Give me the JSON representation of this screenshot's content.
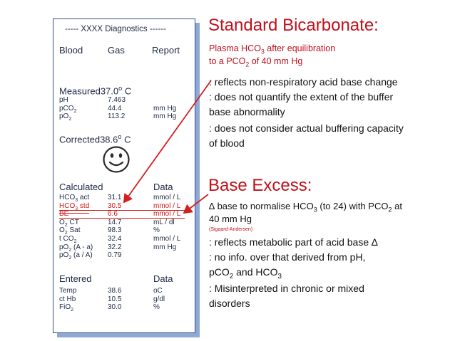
{
  "printout": {
    "title": "----- XXXX Diagnostics ------",
    "header": {
      "c1": "Blood",
      "c2": "Gas",
      "c3": "Report"
    },
    "measured": {
      "label": "Measured",
      "temp": "37.0",
      "unit": "C",
      "deg": "o"
    },
    "measured_rows": [
      {
        "name": "pH",
        "value": "7.463",
        "unit": ""
      },
      {
        "name": "pCO",
        "sub": "2",
        "value": "44.4",
        "unit": "mm Hg"
      },
      {
        "name": "pO",
        "sub": "2",
        "value": "113.2",
        "unit": "mm Hg"
      }
    ],
    "corrected": {
      "label": "Corrected",
      "temp": "38.6",
      "unit": "C",
      "deg": "o"
    },
    "calculated": {
      "label": "Calculated",
      "right": "Data"
    },
    "calculated_rows": [
      {
        "name": "HCO",
        "sub": "3",
        "suffix": " act",
        "value": "31.1",
        "unit": "mmol / L",
        "red": false
      },
      {
        "name": "HCO",
        "sub": "3",
        "suffix": " std",
        "value": "30.5",
        "unit": "mmol / L",
        "red": true
      },
      {
        "name": "BE",
        "sub": "",
        "suffix": "",
        "value": "6.6",
        "unit": "mmol / L",
        "red": true
      },
      {
        "name": "O",
        "sub": "2",
        "suffix": " CT",
        "value": "14.7",
        "unit": "mL / dl",
        "red": false
      },
      {
        "name": "O",
        "sub": "2",
        "suffix": " Sat",
        "value": "98.3",
        "unit": "%",
        "red": false
      },
      {
        "name": "t CO",
        "sub": "2",
        "suffix": "",
        "value": "32.4",
        "unit": "mmol / L",
        "red": false
      },
      {
        "name": "pO",
        "sub": "2",
        "suffix": " (A - a)",
        "value": "32.2",
        "unit": "mm Hg",
        "red": false
      },
      {
        "name": "pO",
        "sub": "2",
        "suffix": " (a / A)",
        "value": "0.79",
        "unit": "",
        "red": false
      }
    ],
    "entered": {
      "label": "Entered",
      "right": "Data"
    },
    "entered_rows": [
      {
        "name": "Temp",
        "sub": "",
        "value": "38.6",
        "unit": "oC"
      },
      {
        "name": "ct Hb",
        "sub": "",
        "value": "10.5",
        "unit": "g/dl"
      },
      {
        "name": "FiO",
        "sub": "2",
        "value": "30.0",
        "unit": "%"
      }
    ]
  },
  "standard_bicarbonate": {
    "title": "Standard Bicarbonate:",
    "def_line1_a": "Plasma HCO",
    "def_line1_sub": "3",
    "def_line1_b": " after equilibration",
    "def_line2_a": "to a PCO",
    "def_line2_sub": "2",
    "def_line2_b": " of 40 mm Hg",
    "notes": [
      ": reflects non-respiratory acid base change",
      ": does not quantify the extent of the buffer",
      "base abnormality",
      ": does not consider actual buffering capacity",
      "of blood"
    ]
  },
  "base_excess": {
    "title": "Base Excess:",
    "def_a": "∆ base to normalise HCO",
    "def_sub1": "3",
    "def_b": " (to 24) with PCO",
    "def_sub2": "2",
    "def_c": " at",
    "def_line2": "40 mm Hg",
    "citation": "(Sigaard-Andersen)",
    "note1": ": reflects metabolic part of acid base ∆",
    "note2": ": no info. over that derived from pH,",
    "note3_a": "pCO",
    "note3_sub": "2",
    "note3_b": " and HCO",
    "note3_sub2": "3",
    "note4": ": Misinterpreted in chronic or mixed",
    "note5": "disorders"
  },
  "colors": {
    "accent_red": "#c0101b",
    "printout_border": "#2f4e8a",
    "printout_shadow": "#8fa9d6"
  },
  "icons": {
    "smiley": "smiley-face-icon"
  }
}
